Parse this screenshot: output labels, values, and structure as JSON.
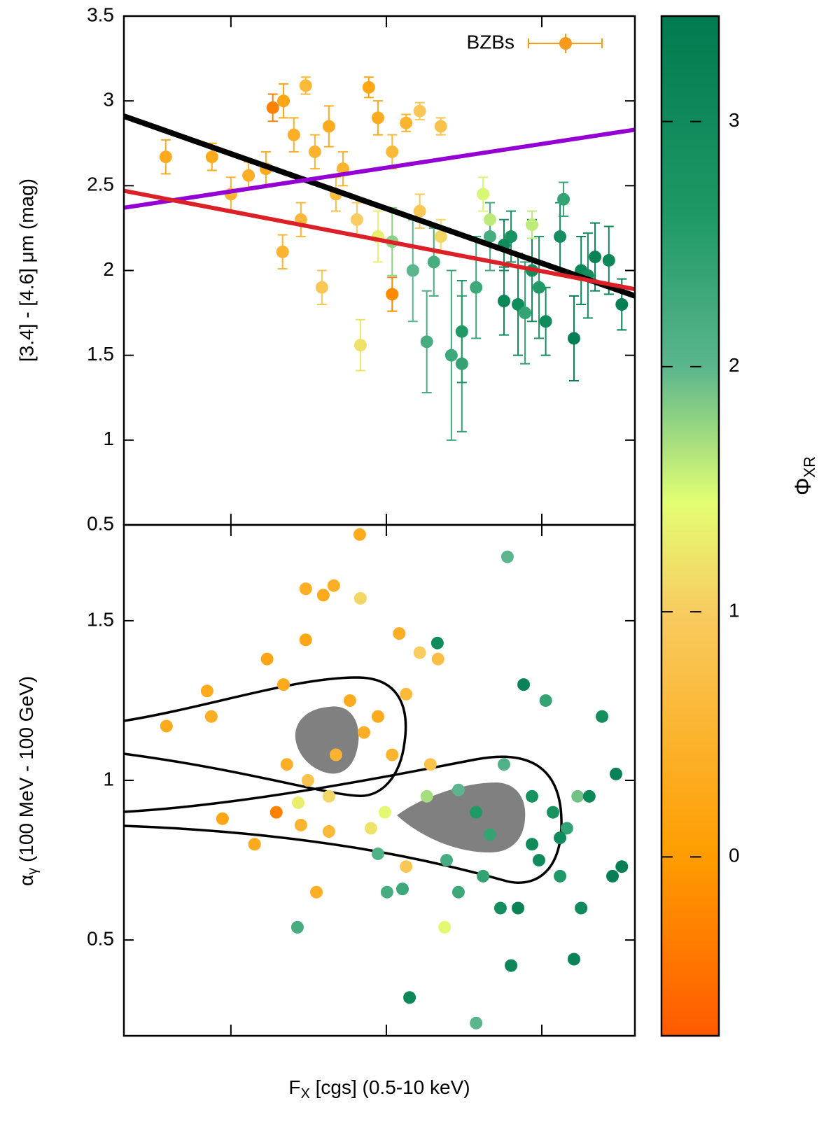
{
  "chart_data": [
    {
      "type": "scatter",
      "ylabel": "[3.4] - [4.6] μm (mag)",
      "log_x": true,
      "xlim": [
        2.05e-14,
        3.97e-11
      ],
      "xticks": [
        1e-13,
        1e-12,
        1e-11
      ],
      "ylim": [
        0.5,
        3.5
      ],
      "yticks": [
        0.5,
        1,
        1.5,
        2,
        2.5,
        3,
        3.5
      ],
      "legend": "top right",
      "series": [
        {
          "name": "BZBs",
          "color": "#f59a1a",
          "x": [
            3.81e-14,
            7.56e-14,
            1e-13,
            1.3e-13,
            1.68e-13,
            2.18e-13,
            1.86e-13,
            3.03e-13,
            2.54e-13,
            3.47e-13,
            4.27e-13,
            5.26e-13,
            7.71e-13,
            8.83e-13,
            1.09e-12,
            1.64e-12,
            2.24e-12,
            1.34e-12,
            2.15e-13,
            3.85e-13,
            6.81e-13,
            1.09e-12,
            2.82e-13,
            4.74e-13,
            6.47e-13,
            8.83e-13,
            1.64e-12,
            2.24e-12,
            1.48e-12,
            1.82e-12,
            2.62e-12,
            3.06e-12,
            3.06e-12,
            3.78e-12,
            4.64e-12,
            5.71e-12,
            7.03e-12,
            8.65e-12,
            9.59e-12,
            1.06e-11,
            1.31e-11,
            1.38e-11,
            1.61e-11,
            1.79e-11,
            2.2e-11,
            2.7e-11,
            3.27e-11,
            1.09e-12,
            2.02e-12,
            4.19e-12,
            6.34e-12,
            8.65e-12,
            5.71e-12,
            1.98e-11,
            7.8e-12,
            4.64e-12
          ],
          "y": [
            2.67,
            2.67,
            2.45,
            2.56,
            2.6,
            3.0,
            2.96,
            3.09,
            2.8,
            2.7,
            2.85,
            2.6,
            3.08,
            2.9,
            2.7,
            2.94,
            2.85,
            2.87,
            2.11,
            1.9,
            1.56,
            1.86,
            2.3,
            2.45,
            2.3,
            2.2,
            2.35,
            2.2,
            2.0,
            1.58,
            1.5,
            1.45,
            1.64,
            1.9,
            2.3,
            1.82,
            1.8,
            2.0,
            1.9,
            1.7,
            2.2,
            2.42,
            1.6,
            2.0,
            2.08,
            2.06,
            1.8,
            2.17,
            2.05,
            2.45,
            2.2,
            2.27,
            2.15,
            1.97,
            1.75,
            2.2
          ],
          "yerr": [
            0.1,
            0.08,
            0.1,
            0.08,
            0.1,
            0.1,
            0.08,
            0.05,
            0.1,
            0.1,
            0.12,
            0.1,
            0.06,
            0.1,
            0.1,
            0.05,
            0.05,
            0.05,
            0.1,
            0.1,
            0.15,
            0.1,
            0.1,
            0.1,
            0.1,
            0.15,
            0.1,
            0.1,
            0.3,
            0.3,
            0.5,
            0.4,
            0.3,
            0.3,
            0.1,
            0.2,
            0.3,
            0.3,
            0.3,
            0.2,
            0.2,
            0.1,
            0.25,
            0.2,
            0.2,
            0.2,
            0.15,
            0.2,
            0.2,
            0.1,
            0.15,
            0.08,
            0.15,
            0.25,
            0.3,
            0.2
          ],
          "phi": [
            0.3,
            0.3,
            0.5,
            0.4,
            0.3,
            0.2,
            -0.3,
            0.6,
            0.4,
            0.5,
            0.3,
            0.5,
            0.2,
            0.3,
            0.6,
            0.9,
            0.8,
            0.5,
            0.5,
            0.9,
            1.2,
            -0.2,
            0.6,
            0.7,
            1.0,
            1.3,
            0.9,
            1.1,
            2.0,
            2.2,
            2.3,
            2.4,
            2.6,
            2.3,
            1.6,
            3.1,
            3.0,
            2.9,
            2.6,
            3.0,
            2.9,
            2.4,
            3.3,
            3.1,
            3.2,
            3.1,
            3.3,
            1.8,
            2.2,
            1.5,
            2.8,
            1.6,
            3.0,
            2.9,
            2.4,
            2.2
          ]
        }
      ],
      "lines": [
        {
          "color": "#000000",
          "x": [
            2.05e-14,
            3.97e-11
          ],
          "y": [
            2.91,
            1.85
          ]
        },
        {
          "color": "#9400d3",
          "x": [
            2.05e-14,
            3.97e-11
          ],
          "y": [
            2.37,
            2.83
          ]
        },
        {
          "color": "#dc2028",
          "x": [
            2.05e-14,
            3.97e-11
          ],
          "y": [
            2.47,
            1.89
          ]
        }
      ]
    },
    {
      "type": "scatter",
      "ylabel": {
        "main": "α",
        "sub": "γ",
        "rest": " (100 MeV - 100 GeV)"
      },
      "xlabel": {
        "main": "F",
        "sub": "X",
        "rest": " [cgs] (0.5-10 keV)"
      },
      "log_x": true,
      "xlim": [
        2.05e-14,
        3.97e-11
      ],
      "xticks": [
        1e-13,
        1e-12,
        1e-11
      ],
      "ylim": [
        0.2,
        1.8
      ],
      "yticks": [
        0.5,
        1,
        1.5
      ],
      "series": [
        {
          "x": [
            3.85e-14,
            7.03e-14,
            7.48e-14,
            8.83e-14,
            1.42e-13,
            1.71e-13,
            2.18e-13,
            1.96e-13,
            3.03e-13,
            3.93e-13,
            4.59e-13,
            6.74e-13,
            6.81e-13,
            3.03e-13,
            2.29e-13,
            3.13e-13,
            2.82e-13,
            4.27e-13,
            4.74e-13,
            5.83e-13,
            7.18e-13,
            8.83e-13,
            1.09e-12,
            1.21e-12,
            1.34e-12,
            1.64e-12,
            2.15e-12,
            1.92e-12,
            3.55e-13,
            2.71e-13,
            4.27e-13,
            7.96e-13,
            9.79e-13,
            1.34e-12,
            2.37e-12,
            2.68e-13,
            8.83e-13,
            1.01e-12,
            1.27e-12,
            1.41e-12,
            2.13e-12,
            2.44e-12,
            2.91e-12,
            3.78e-12,
            4.19e-12,
            5.71e-12,
            6.01e-12,
            5.42e-12,
            6.34e-12,
            7.03e-12,
            7.64e-12,
            8.65e-12,
            1.06e-11,
            1.18e-11,
            1.31e-11,
            1.45e-11,
            1.61e-11,
            1.79e-11,
            1.7e-11,
            2.02e-11,
            2.44e-11,
            2.85e-11,
            3e-11,
            3.27e-11,
            8.65e-12,
            9.59e-12,
            1.31e-11,
            2.91e-12,
            1.82e-12,
            4.64e-12,
            3.78e-12
          ],
          "y": [
            1.17,
            1.28,
            1.2,
            0.88,
            0.8,
            1.38,
            1.3,
            0.9,
            1.6,
            1.58,
            1.61,
            1.77,
            1.57,
            1.44,
            1.05,
            1.0,
            0.86,
            0.84,
            1.08,
            1.25,
            1.15,
            1.2,
            1.08,
            1.46,
            1.27,
            1.4,
            1.38,
            1.05,
            0.65,
            0.93,
            0.95,
            0.85,
            0.9,
            0.73,
            0.54,
            0.54,
            0.77,
            0.65,
            0.66,
            0.32,
            1.43,
            0.75,
            0.65,
            0.24,
            0.7,
            1.05,
            1.7,
            0.6,
            0.42,
            0.6,
            1.3,
            0.8,
            1.25,
            0.9,
            0.7,
            0.85,
            0.44,
            0.6,
            0.95,
            0.95,
            1.2,
            0.7,
            1.02,
            0.73,
            0.95,
            0.75,
            0.82,
            0.97,
            0.95,
            0.83,
            0.9
          ],
          "phi": [
            0.3,
            0.3,
            0.4,
            0.2,
            0.3,
            0.2,
            0.3,
            -0.3,
            0.4,
            0.3,
            0.4,
            0.3,
            1.1,
            0.2,
            0.4,
            0.8,
            0.5,
            0.6,
            0.5,
            0.3,
            0.4,
            0.3,
            0.5,
            0.4,
            0.6,
            1.0,
            0.7,
            0.8,
            0.4,
            1.3,
            1.1,
            1.2,
            1.4,
            0.9,
            1.4,
            2.2,
            2.1,
            2.2,
            2.3,
            3.1,
            3.0,
            2.2,
            2.3,
            2.0,
            2.4,
            2.1,
            2.0,
            2.9,
            3.1,
            3.2,
            3.2,
            3.0,
            2.4,
            2.8,
            2.6,
            2.4,
            3.2,
            3.0,
            1.9,
            3.1,
            2.9,
            3.3,
            3.2,
            3.3,
            2.8,
            3.0,
            3.0,
            2.0,
            1.7,
            2.4,
            2.6
          ]
        }
      ]
    }
  ],
  "colorbar": {
    "label": {
      "main": "Φ",
      "sub": "XR"
    },
    "lim": [
      -0.73,
      3.43
    ],
    "ticks": [
      0,
      1,
      2,
      3
    ],
    "stops": [
      [
        -0.73,
        "#ff5a00"
      ],
      [
        0,
        "#ff9c00"
      ],
      [
        1,
        "#f8cc60"
      ],
      [
        1.45,
        "#e2ff73"
      ],
      [
        2,
        "#5bb58d"
      ],
      [
        2.6,
        "#1f9a66"
      ],
      [
        3.43,
        "#007a4f"
      ]
    ]
  }
}
